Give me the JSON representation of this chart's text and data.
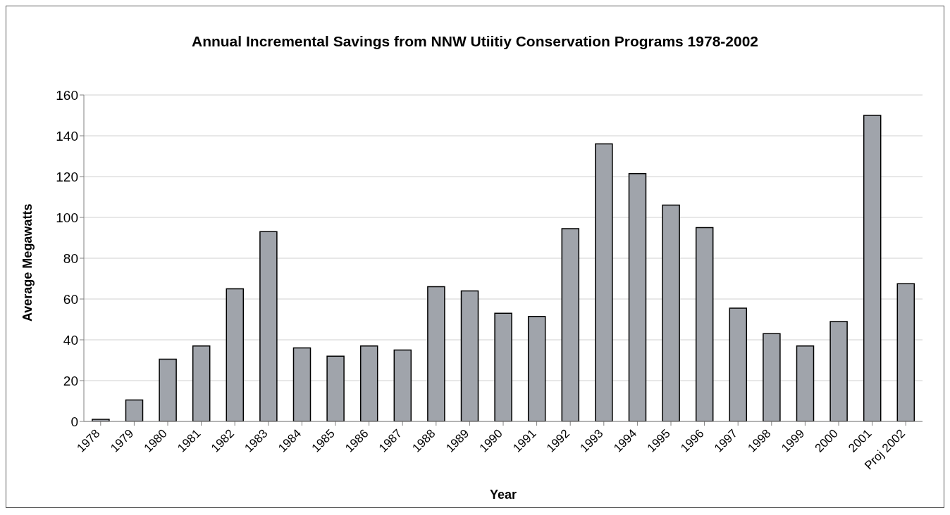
{
  "chart_data": {
    "type": "bar",
    "title": "Annual Incremental Savings from NNW Utiitiy Conservation Programs 1978-2002",
    "xlabel": "Year",
    "ylabel": "Average Megawatts",
    "categories": [
      "1978",
      "1979",
      "1980",
      "1981",
      "1982",
      "1983",
      "1984",
      "1985",
      "1986",
      "1987",
      "1988",
      "1989",
      "1990",
      "1991",
      "1992",
      "1993",
      "1994",
      "1995",
      "1996",
      "1997",
      "1998",
      "1999",
      "2000",
      "2001",
      "Proj 2002"
    ],
    "values": [
      1,
      10.5,
      30.5,
      37,
      65,
      93,
      36,
      32,
      37,
      35,
      66,
      64,
      53,
      51.5,
      94.5,
      136,
      121.5,
      106,
      95,
      55.5,
      43,
      37,
      49,
      150,
      67.5
    ],
    "color": "#a0a4ab",
    "ylim": [
      0,
      160
    ],
    "yticks": [
      0,
      20,
      40,
      60,
      80,
      100,
      120,
      140,
      160
    ],
    "grid": "y"
  }
}
